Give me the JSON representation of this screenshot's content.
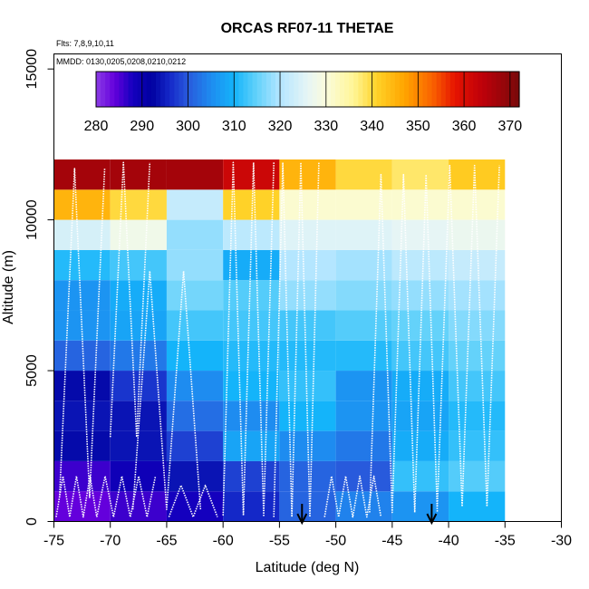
{
  "chart_data": {
    "type": "heatmap",
    "title": "ORCAS RF07-11 THETAE",
    "flights_note": "Flts: 7,8,9,10,11",
    "dates_note": "MMDD: 0130,0205,0208,0210,0212",
    "xlabel": "Latitude (deg N)",
    "ylabel": "Altitude (m)",
    "xlim": [
      -75,
      -30
    ],
    "ylim": [
      0,
      15500
    ],
    "x_ticks": [
      -75,
      -70,
      -65,
      -60,
      -55,
      -50,
      -45,
      -40,
      -35,
      -30
    ],
    "x_tick_labels": [
      "-75",
      "-70",
      "-65",
      "-60",
      "-55",
      "-50",
      "-45",
      "-40",
      "-35",
      "-30"
    ],
    "y_ticks": [
      0,
      5000,
      10000,
      15000
    ],
    "y_tick_labels": [
      "0",
      "5000",
      "10000",
      "15000"
    ],
    "colorbar": {
      "min": 280,
      "max": 372,
      "ticks": [
        280,
        290,
        300,
        310,
        320,
        330,
        340,
        350,
        360,
        370
      ],
      "tick_labels": [
        "280",
        "290",
        "300",
        "310",
        "320",
        "330",
        "340",
        "350",
        "360",
        "370"
      ]
    },
    "grid": {
      "lat_edges": [
        -75,
        -70,
        -65,
        -60,
        -55,
        -50,
        -45,
        -40,
        -35
      ],
      "alt_edges": [
        0,
        1000,
        2000,
        3000,
        4000,
        5000,
        6000,
        7000,
        8000,
        9000,
        10000,
        11000,
        12000
      ],
      "values": [
        [
          284,
          286,
          288,
          296,
          301,
          304,
          306,
          310
        ],
        [
          286,
          289,
          294,
          298,
          301,
          300,
          312,
          314
        ],
        [
          293,
          294,
          298,
          308,
          305,
          303,
          309,
          312
        ],
        [
          294,
          294,
          302,
          305,
          310,
          306,
          308,
          311
        ],
        [
          293,
          297,
          305,
          310,
          312,
          306,
          309,
          313
        ],
        [
          301,
          303,
          310,
          311,
          311,
          311,
          313,
          315
        ],
        [
          306,
          308,
          313,
          313,
          313,
          314,
          315,
          317
        ],
        [
          306,
          309,
          316,
          314,
          318,
          317,
          318,
          319
        ],
        [
          311,
          313,
          318,
          309,
          320,
          319,
          321,
          322
        ],
        [
          324,
          328,
          318,
          321,
          325,
          325,
          326,
          327
        ],
        [
          345,
          340,
          322,
          341,
          331,
          331,
          331,
          331
        ],
        [
          367,
          367,
          367,
          362,
          345,
          340,
          338,
          342
        ]
      ]
    },
    "markers": [
      {
        "label": "arrow",
        "lat": -53
      },
      {
        "label": "arrow",
        "lat": -41.5
      }
    ]
  }
}
